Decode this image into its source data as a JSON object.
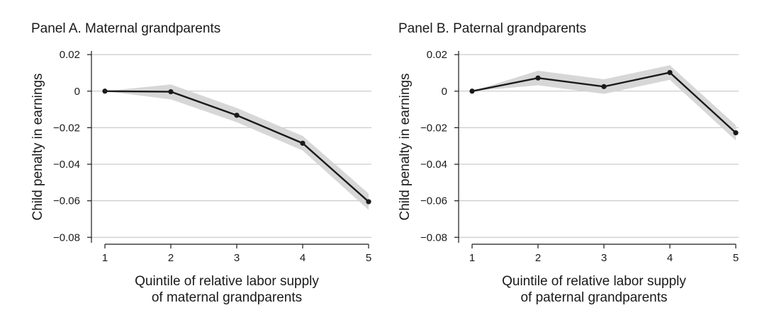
{
  "chart_data": [
    {
      "type": "line",
      "title": "Panel A. Maternal grandparents",
      "ylabel": "Child penalty in earnings",
      "xlabel": [
        "Quintile of relative labor supply",
        "of maternal grandparents"
      ],
      "x": [
        1,
        2,
        3,
        4,
        5
      ],
      "y_tick_labels": [
        "0.02",
        "0",
        "−0.02",
        "−0.04",
        "−0.06",
        "−0.08"
      ],
      "y_ticks": [
        0.02,
        0,
        -0.02,
        -0.04,
        -0.06,
        -0.08
      ],
      "ylim": [
        -0.083,
        0.022
      ],
      "xlim": [
        1,
        5
      ],
      "grid": true,
      "series": [
        {
          "values": [
            0.0,
            -0.0003,
            -0.0132,
            -0.0285,
            -0.0605
          ],
          "ci_lower": [
            0.0,
            -0.0045,
            -0.017,
            -0.0325,
            -0.065
          ],
          "ci_upper": [
            0.0,
            0.0037,
            -0.0092,
            -0.0245,
            -0.056
          ]
        }
      ],
      "colors": {
        "line": "#1a1a1a",
        "band": "#d3d3d3",
        "grid": "#bfbfbf"
      }
    },
    {
      "type": "line",
      "title": "Panel B. Paternal grandparents",
      "ylabel": "Child penalty in earnings",
      "xlabel": [
        "Quintile of relative labor supply",
        "of paternal grandparents"
      ],
      "x": [
        1,
        2,
        3,
        4,
        5
      ],
      "y_tick_labels": [
        "0.02",
        "0",
        "−0.02",
        "−0.04",
        "−0.06",
        "−0.08"
      ],
      "y_ticks": [
        0.02,
        0,
        -0.02,
        -0.04,
        -0.06,
        -0.08
      ],
      "ylim": [
        -0.083,
        0.022
      ],
      "xlim": [
        1,
        5
      ],
      "grid": true,
      "series": [
        {
          "values": [
            0.0,
            0.0072,
            0.0025,
            0.0102,
            -0.0228
          ],
          "ci_lower": [
            0.0,
            0.0032,
            -0.0015,
            0.0062,
            -0.027
          ],
          "ci_upper": [
            0.0,
            0.0112,
            0.0065,
            0.0142,
            -0.0186
          ]
        }
      ],
      "colors": {
        "line": "#1a1a1a",
        "band": "#d3d3d3",
        "grid": "#bfbfbf"
      }
    }
  ]
}
